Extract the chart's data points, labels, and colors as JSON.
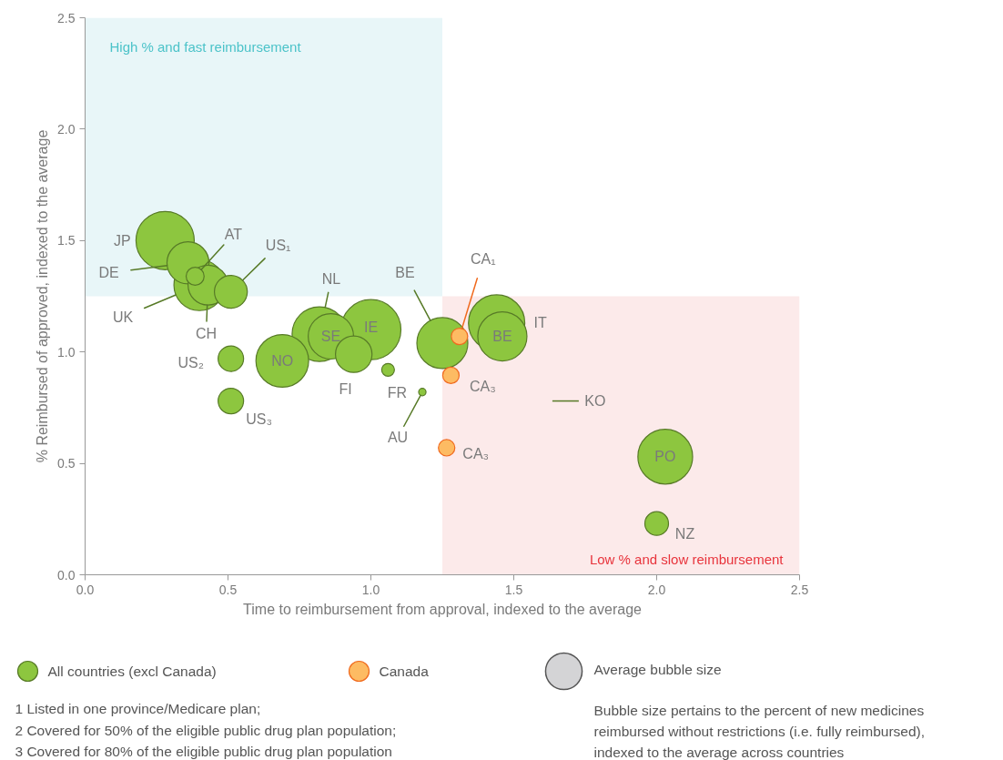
{
  "chart_data": {
    "type": "bubble",
    "xlabel": "Time to reimbursement from approval, indexed to the average",
    "ylabel": "% Reimbursed of approved, indexed to the average",
    "xlim": [
      0,
      2.5
    ],
    "ylim": [
      0,
      2.5
    ],
    "xticks": [
      {
        "value": 0,
        "label": "0.0"
      },
      {
        "value": 0.5,
        "label": "0.5"
      },
      {
        "value": 1,
        "label": "1.0"
      },
      {
        "value": 1.5,
        "label": "1.5"
      },
      {
        "value": 2,
        "label": "2.0"
      },
      {
        "value": 2.5,
        "label": "2.5"
      }
    ],
    "yticks": [
      {
        "value": 0,
        "label": "0.0"
      },
      {
        "value": 0.5,
        "label": "0.5"
      },
      {
        "value": 1,
        "label": "1.0"
      },
      {
        "value": 1.5,
        "label": "1.5"
      },
      {
        "value": 2,
        "label": "2.0"
      },
      {
        "value": 2.5,
        "label": "2.5"
      }
    ],
    "grid": false,
    "legend": "bottom",
    "marker": "circle",
    "bands": [
      {
        "axis": "x",
        "from": 0,
        "to": 1.25,
        "label": "High % and fast reimbursement",
        "color": "#e8f6f8"
      },
      {
        "axis": "x",
        "from": 1.25,
        "to": 2.5,
        "label": "Low % and slow reimbursement",
        "color": "#fceaea"
      }
    ],
    "size_legend": [
      {
        "value": 0.37,
        "label": "Average bubble size"
      }
    ],
    "series": [
      {
        "name": "All countries (excl Canada)",
        "color": "#8dc63f",
        "x": [
          0.28,
          0.36,
          0.385,
          0.4,
          0.43,
          0.51,
          0.51,
          0.51,
          0.69,
          0.82,
          0.86,
          0.94,
          1.0,
          1.06,
          1.18,
          1.25,
          1.44,
          1.46,
          2.03,
          2.0
        ],
        "values": [
          1.5,
          1.4,
          1.34,
          1.3,
          1.3,
          1.27,
          0.97,
          0.78,
          0.96,
          1.08,
          1.07,
          0.99,
          1.1,
          0.92,
          0.82,
          1.04,
          1.13,
          1.07,
          0.53,
          0.23
        ],
        "sizes": [
          0.94,
          0.49,
          0.09,
          0.72,
          0.44,
          0.3,
          0.18,
          0.18,
          0.77,
          0.83,
          0.57,
          0.37,
          1,
          0.045,
          0.015,
          0.72,
          0.88,
          0.67,
          0.83,
          0.155
        ],
        "value_labels": [
          "JP",
          "DE",
          "AT",
          "UK",
          "CH",
          "US₁",
          "US₂",
          "US₃",
          "NO",
          "NL",
          "SE",
          "FI",
          "IE",
          "FR",
          "AU",
          "BE",
          "IT",
          "BE",
          "PO",
          "NZ"
        ]
      },
      {
        "name": "Canada",
        "color": "#fdbb63",
        "x": [
          1.31,
          1.28,
          1.265
        ],
        "values": [
          1.07,
          0.895,
          0.57
        ],
        "sizes": [
          0.075,
          0.075,
          0.075
        ],
        "value_labels": [
          "CA₁",
          "CA₃",
          "CA₃"
        ]
      }
    ],
    "annotations": [
      "KO",
      "1  Listed in one province/Medicare plan;",
      "2 Covered for 50% of the eligible public drug plan population;",
      "3 Covered for 80% of the eligible public drug plan population",
      "Bubble size pertains to the percent of new medicines reimbursed without restrictions (i.e. fully reimbursed), indexed to the average across countries"
    ]
  }
}
